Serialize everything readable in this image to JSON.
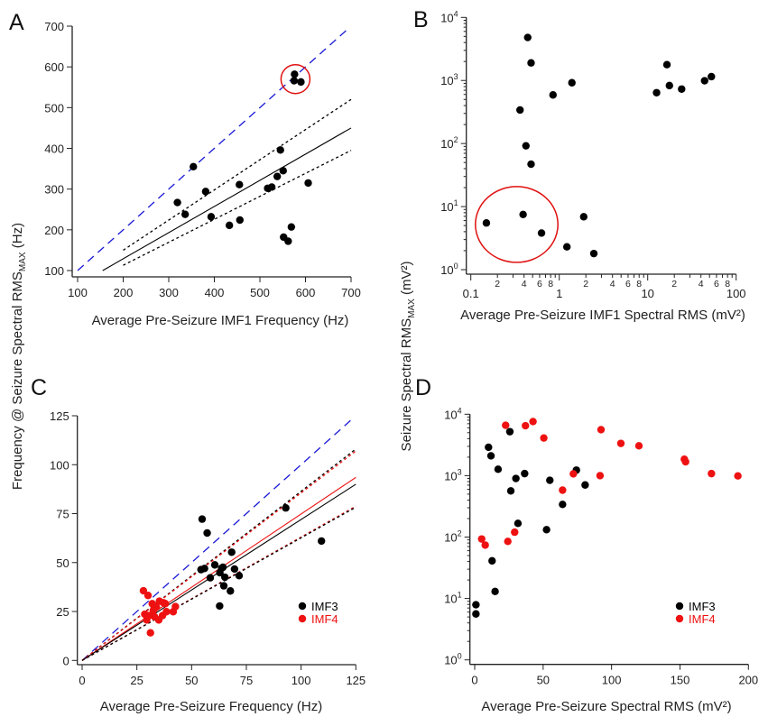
{
  "ylabels": {
    "left": {
      "pre": "Frequency @ Seizure Spectral RMS",
      "sub": "MAX",
      "post": " (Hz)"
    },
    "right": {
      "pre": "Seizure Spectral RMS",
      "sub": "MAX",
      "post": " (mV²)"
    }
  },
  "colors": {
    "imf3": "#000000",
    "imf4": "#ee1111",
    "identity": "#1a1ad6",
    "circle": "#e01010"
  },
  "chart_data": [
    {
      "panel": "A",
      "type": "scatter",
      "xlabel": "Average Pre-Seizure IMF1 Frequency (Hz)",
      "xscale": "linear",
      "yscale": "linear",
      "xlim": [
        100,
        700
      ],
      "ylim": [
        100,
        700
      ],
      "xticks": [
        100,
        200,
        300,
        400,
        500,
        600,
        700
      ],
      "yticks": [
        100,
        200,
        300,
        400,
        500,
        600,
        700
      ],
      "series": [
        {
          "name": "IMF1",
          "color": "#000000",
          "points": [
            [
              576,
              582
            ],
            [
              575,
              566
            ],
            [
              590,
              563
            ],
            [
              354,
              355
            ],
            [
              545,
              396
            ],
            [
              551,
              345
            ],
            [
              538,
              331
            ],
            [
              526,
              305
            ],
            [
              517,
              302
            ],
            [
              606,
              315
            ],
            [
              455,
              311
            ],
            [
              381,
              294
            ],
            [
              319,
              267
            ],
            [
              336,
              238
            ],
            [
              393,
              232
            ],
            [
              433,
              211
            ],
            [
              456,
              224
            ],
            [
              569,
              207
            ],
            [
              552,
              182
            ],
            [
              562,
              172
            ]
          ]
        }
      ],
      "lines": [
        {
          "name": "identity",
          "style": "dashed",
          "color": "#1a1ad6",
          "from": [
            100,
            100
          ],
          "to": [
            690,
            690
          ]
        },
        {
          "name": "fit",
          "style": "solid",
          "color": "#000000",
          "from": [
            155,
            100
          ],
          "to": [
            700,
            450
          ]
        },
        {
          "name": "ci-upper",
          "style": "dotted",
          "color": "#000000",
          "from": [
            200,
            150
          ],
          "to": [
            700,
            520
          ]
        },
        {
          "name": "ci-lower",
          "style": "dotted",
          "color": "#000000",
          "from": [
            200,
            113
          ],
          "to": [
            700,
            395
          ]
        }
      ],
      "annotation_circle": {
        "center": [
          578,
          570
        ]
      }
    },
    {
      "panel": "B",
      "type": "scatter",
      "xlabel": "Average Pre-Seizure IMF1 Spectral RMS (mV²)",
      "xscale": "log",
      "yscale": "log",
      "xlim": [
        0.1,
        100
      ],
      "ylim": [
        1,
        10000
      ],
      "xtick_labels": [
        "0.1",
        "1",
        "10",
        "100"
      ],
      "xminor_labels": [
        "2",
        "4",
        "6",
        "8"
      ],
      "ytick_exponents": [
        "0",
        "1",
        "2",
        "3",
        "4"
      ],
      "series": [
        {
          "name": "IMF1",
          "color": "#000000",
          "points": [
            [
              0.44,
              4800
            ],
            [
              0.48,
              1900
            ],
            [
              0.85,
              590
            ],
            [
              1.39,
              920
            ],
            [
              0.36,
              340
            ],
            [
              0.42,
              92
            ],
            [
              0.48,
              47
            ],
            [
              0.15,
              5.5
            ],
            [
              0.39,
              7.5
            ],
            [
              0.63,
              3.8
            ],
            [
              1.22,
              2.3
            ],
            [
              1.89,
              6.9
            ],
            [
              2.46,
              1.8
            ],
            [
              12.6,
              640
            ],
            [
              16.5,
              1780
            ],
            [
              17.6,
              830
            ],
            [
              24.2,
              730
            ],
            [
              44,
              990
            ],
            [
              52.5,
              1150
            ]
          ]
        }
      ],
      "annotation_circle": {
        "center": [
          0.33,
          5.2
        ]
      }
    },
    {
      "panel": "C",
      "type": "scatter",
      "xlabel": "Average Pre-Seizure Frequency (Hz)",
      "xscale": "linear",
      "yscale": "linear",
      "xlim": [
        0,
        125
      ],
      "ylim": [
        0,
        125
      ],
      "xticks": [
        0,
        25,
        50,
        75,
        100,
        125
      ],
      "yticks": [
        0,
        25,
        50,
        75,
        100,
        125
      ],
      "legend": {
        "position": "lower-right"
      },
      "series": [
        {
          "name": "IMF3",
          "color": "#000000",
          "points": [
            [
              54.8,
              72.2
            ],
            [
              57.1,
              65.1
            ],
            [
              93.0,
              77.9
            ],
            [
              109.3,
              61.0
            ],
            [
              68.3,
              55.3
            ],
            [
              60.6,
              48.8
            ],
            [
              54.3,
              46.4
            ],
            [
              55.9,
              47
            ],
            [
              64.3,
              47.6
            ],
            [
              69.6,
              46.7
            ],
            [
              58.5,
              42.2
            ],
            [
              62.9,
              44.8
            ],
            [
              65.2,
              42.5
            ],
            [
              71.7,
              43.3
            ],
            [
              64.7,
              38.1
            ],
            [
              67.7,
              35.5
            ],
            [
              62.8,
              27.8
            ],
            [
              63.7,
              47.1
            ]
          ]
        },
        {
          "name": "IMF4",
          "color": "#ee1111",
          "points": [
            [
              28.0,
              35.6
            ],
            [
              30.1,
              33.2
            ],
            [
              32.0,
              29.0
            ],
            [
              35.3,
              30.3
            ],
            [
              37.1,
              29.5
            ],
            [
              38.0,
              29
            ],
            [
              33.9,
              27.2
            ],
            [
              28.6,
              23.6
            ],
            [
              30.5,
              22.9
            ],
            [
              33.1,
              22.3
            ],
            [
              35.0,
              20.7
            ],
            [
              29.5,
              20.7
            ],
            [
              36.7,
              22.9
            ],
            [
              38.5,
              24.9
            ],
            [
              41.6,
              24.9
            ],
            [
              42.6,
              27.5
            ],
            [
              31.2,
              14.1
            ],
            [
              32.5,
              25.6
            ]
          ]
        }
      ],
      "lines": [
        {
          "name": "identity",
          "style": "dashed",
          "color": "#1a1ad6",
          "from": [
            0,
            0
          ],
          "to": [
            123,
            123
          ]
        },
        {
          "name": "imf3-ci-upper",
          "style": "dotted",
          "color": "#000000",
          "from": [
            0,
            0
          ],
          "to": [
            125,
            108
          ]
        },
        {
          "name": "imf4-ci-upper",
          "style": "dotted",
          "color": "#ee1111",
          "from": [
            0,
            0
          ],
          "to": [
            125,
            107
          ]
        },
        {
          "name": "imf4-fit",
          "style": "solid",
          "color": "#ee1111",
          "from": [
            0,
            0
          ],
          "to": [
            125,
            93.5
          ]
        },
        {
          "name": "imf3-fit",
          "style": "solid",
          "color": "#000000",
          "from": [
            0,
            0
          ],
          "to": [
            125,
            90
          ]
        },
        {
          "name": "imf4-ci-lower",
          "style": "dotted",
          "color": "#ee1111",
          "from": [
            0,
            0
          ],
          "to": [
            125,
            78.8
          ]
        },
        {
          "name": "imf3-ci-lower",
          "style": "dotted",
          "color": "#000000",
          "from": [
            0,
            0
          ],
          "to": [
            125,
            78.3
          ]
        }
      ]
    },
    {
      "panel": "D",
      "type": "scatter",
      "xlabel": "Average Pre-Seizure Spectral RMS (mV²)",
      "xscale": "linear",
      "yscale": "log",
      "xlim": [
        0,
        200
      ],
      "ylim": [
        1,
        10000
      ],
      "xticks": [
        0,
        50,
        100,
        150,
        200
      ],
      "ytick_exponents": [
        "0",
        "1",
        "2",
        "3",
        "4"
      ],
      "legend": {
        "position": "lower-right"
      },
      "series": [
        {
          "name": "IMF3",
          "color": "#000000",
          "points": [
            [
              0.9,
              7.9
            ],
            [
              0.9,
              5.6
            ],
            [
              14.9,
              13
            ],
            [
              12.7,
              41
            ],
            [
              10.1,
              2900
            ],
            [
              11.9,
              2100
            ],
            [
              17.1,
              1270
            ],
            [
              25.7,
              5200
            ],
            [
              30.1,
              900
            ],
            [
              36.5,
              1080
            ],
            [
              26.4,
              565
            ],
            [
              31.6,
              167
            ],
            [
              54.9,
              840
            ],
            [
              52.5,
              132
            ],
            [
              64.2,
              340
            ],
            [
              74.3,
              1230
            ],
            [
              80.7,
              705
            ]
          ]
        },
        {
          "name": "IMF4",
          "color": "#ee1111",
          "points": [
            [
              22.6,
              6600
            ],
            [
              37.1,
              6500
            ],
            [
              42.6,
              7600
            ],
            [
              50.5,
              4100
            ],
            [
              92.3,
              5600
            ],
            [
              106.8,
              3350
            ],
            [
              120.0,
              3060
            ],
            [
              153.2,
              1850
            ],
            [
              154.1,
              1680
            ],
            [
              173.0,
              1080
            ],
            [
              192.3,
              990
            ],
            [
              91.6,
              1000
            ],
            [
              72.1,
              1070
            ],
            [
              64.2,
              580
            ],
            [
              5.1,
              93
            ],
            [
              7.7,
              74
            ],
            [
              24.2,
              85
            ],
            [
              29.2,
              120
            ]
          ]
        }
      ]
    }
  ]
}
